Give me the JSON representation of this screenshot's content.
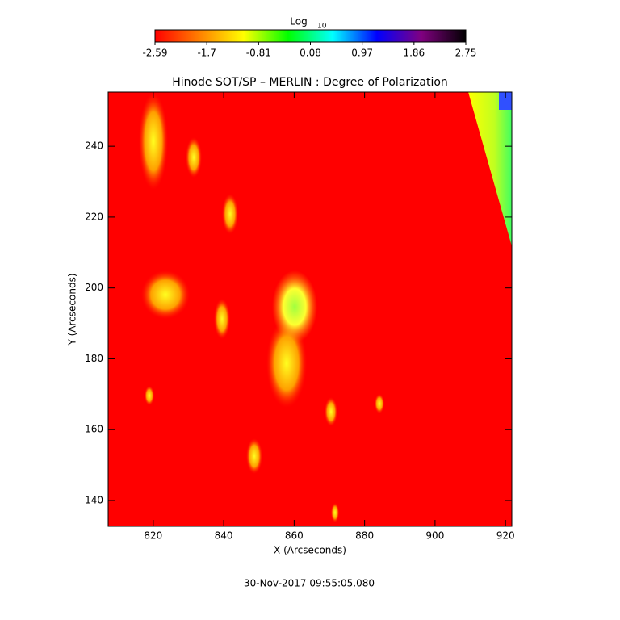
{
  "chart_data": {
    "type": "heatmap",
    "title": "Hinode SOT/SP – MERLIN : Degree of Polarization",
    "xlabel": "X (Arcseconds)",
    "ylabel": "Y (Arcseconds)",
    "xlim": [
      807.2,
      921.8
    ],
    "ylim": [
      132.7,
      255.3
    ],
    "xticks": [
      820,
      840,
      860,
      880,
      900,
      920
    ],
    "yticks": [
      140,
      160,
      180,
      200,
      220,
      240
    ],
    "colorbar": {
      "label": "Log",
      "label_subscript": "10",
      "lim": [
        -2.59,
        2.75
      ],
      "ticks": [
        -2.59,
        -1.7,
        -0.81,
        0.08,
        0.97,
        1.86,
        2.75
      ],
      "colormap": [
        "#ff0000",
        "#ff8000",
        "#ffff00",
        "#00ff00",
        "#00ffff",
        "#0000ff",
        "#800080",
        "#000000"
      ]
    },
    "annotation": "30-Nov-2017 09:55:05.080"
  }
}
